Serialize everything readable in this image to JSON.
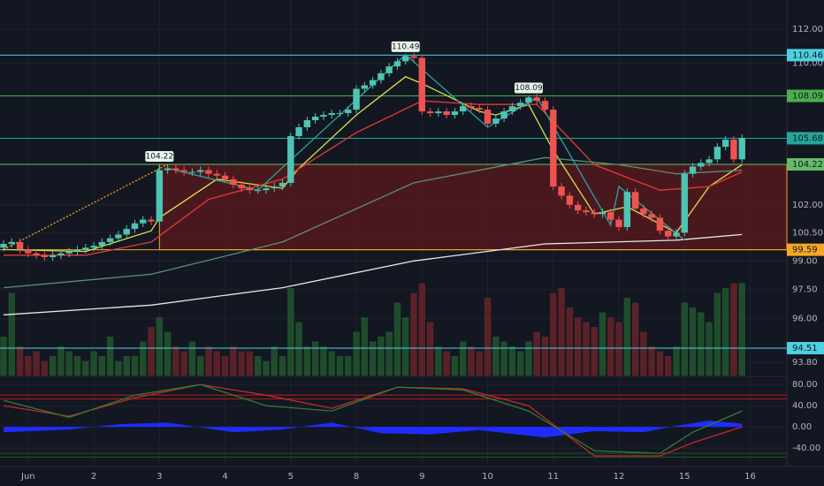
{
  "chart_data": [
    {
      "type": "candlestick",
      "log_scale": true,
      "grid": true,
      "xlim": [
        -0.43,
        95.47
      ],
      "ylim": [
        93.14,
        113.75
      ],
      "xticks": [
        {
          "value": 3,
          "label": "Jun"
        },
        {
          "value": 11,
          "label": "2"
        },
        {
          "value": 19,
          "label": "3"
        },
        {
          "value": 27,
          "label": "4"
        },
        {
          "value": 35,
          "label": "5"
        },
        {
          "value": 43,
          "label": "8"
        },
        {
          "value": 51,
          "label": "9"
        },
        {
          "value": 59,
          "label": "10"
        },
        {
          "value": 67,
          "label": "11"
        },
        {
          "value": 75,
          "label": "12"
        },
        {
          "value": 83,
          "label": "15"
        },
        {
          "value": 91,
          "label": "16"
        }
      ],
      "yticks": [
        {
          "value": 112,
          "label": "112.00"
        },
        {
          "value": 110,
          "label": "110.00"
        },
        {
          "value": 102,
          "label": "102.00"
        },
        {
          "value": 100.5,
          "label": "100.50"
        },
        {
          "value": 99,
          "label": "99.00"
        },
        {
          "value": 97.5,
          "label": "97.50"
        },
        {
          "value": 96,
          "label": "96.00"
        },
        {
          "value": 93.8,
          "label": "93.80"
        }
      ],
      "up_color": "#4fc3b4",
      "down_color": "#ef5350",
      "open": [
        99.7,
        99.9,
        100.0,
        99.6,
        99.4,
        99.3,
        99.2,
        99.3,
        99.4,
        99.5,
        99.6,
        99.7,
        99.8,
        100.0,
        100.2,
        100.4,
        100.7,
        101.0,
        101.2,
        101.1,
        103.9,
        104.0,
        103.9,
        103.8,
        103.8,
        103.9,
        103.7,
        103.6,
        103.4,
        103.1,
        102.9,
        102.8,
        102.8,
        102.9,
        103.0,
        103.2,
        105.8,
        106.3,
        106.7,
        106.9,
        107.0,
        107.1,
        107.1,
        107.3,
        108.5,
        108.7,
        109.0,
        109.4,
        109.8,
        110.1,
        110.4,
        110.3,
        107.2,
        107.1,
        107.2,
        107.0,
        107.2,
        107.5,
        107.4,
        107.3,
        106.5,
        106.8,
        107.2,
        107.5,
        107.7,
        108.0,
        107.8,
        107.3,
        103.0,
        102.5,
        102.0,
        101.7,
        101.6,
        101.5,
        101.6,
        101.2,
        100.8,
        102.7,
        101.8,
        101.5,
        101.3,
        100.6,
        100.3,
        100.5,
        103.7,
        104.1,
        104.3,
        104.5,
        105.2,
        105.6,
        104.5
      ],
      "high": [
        100.1,
        100.2,
        100.2,
        99.8,
        99.6,
        99.5,
        99.5,
        99.6,
        99.7,
        99.8,
        99.9,
        100.0,
        100.2,
        100.4,
        100.6,
        100.9,
        101.2,
        101.4,
        101.4,
        104.22,
        104.2,
        104.2,
        104.1,
        104.0,
        104.1,
        104.1,
        103.9,
        103.8,
        103.6,
        103.3,
        103.1,
        103.0,
        103.1,
        103.2,
        103.4,
        106.0,
        106.5,
        106.9,
        107.1,
        107.2,
        107.3,
        107.3,
        107.5,
        108.7,
        108.9,
        109.2,
        109.6,
        110.0,
        110.3,
        110.49,
        110.6,
        110.5,
        107.4,
        107.4,
        107.4,
        107.4,
        107.7,
        107.7,
        107.6,
        107.5,
        107.0,
        107.4,
        107.7,
        107.9,
        108.09,
        108.2,
        108.0,
        107.5,
        103.2,
        102.7,
        102.2,
        101.9,
        101.8,
        101.8,
        101.8,
        101.4,
        102.9,
        102.9,
        102.0,
        101.7,
        101.5,
        100.8,
        100.7,
        103.9,
        104.3,
        104.5,
        104.7,
        105.4,
        105.8,
        105.8,
        105.9
      ],
      "low": [
        99.5,
        99.7,
        99.4,
        99.2,
        99.1,
        99.0,
        99.0,
        99.1,
        99.2,
        99.3,
        99.4,
        99.5,
        99.6,
        99.8,
        100.0,
        100.2,
        100.5,
        100.8,
        100.9,
        100.9,
        103.7,
        103.7,
        103.6,
        103.6,
        103.6,
        103.5,
        103.4,
        103.2,
        102.9,
        102.7,
        102.6,
        102.6,
        102.6,
        102.7,
        102.8,
        103.0,
        105.6,
        106.1,
        106.5,
        106.7,
        106.8,
        106.9,
        106.9,
        107.1,
        108.3,
        108.5,
        108.8,
        109.2,
        109.6,
        109.9,
        110.1,
        107.0,
        106.9,
        106.9,
        106.8,
        106.8,
        107.0,
        107.2,
        107.1,
        106.3,
        106.3,
        106.6,
        107.0,
        107.3,
        107.5,
        107.6,
        107.1,
        102.8,
        102.3,
        101.8,
        101.5,
        101.4,
        101.3,
        101.3,
        101.0,
        100.6,
        100.6,
        101.6,
        101.3,
        101.1,
        100.4,
        100.1,
        100.1,
        100.3,
        103.5,
        103.9,
        104.1,
        104.3,
        105.0,
        104.3,
        104.3
      ],
      "close": [
        99.9,
        100.0,
        99.6,
        99.4,
        99.3,
        99.2,
        99.3,
        99.4,
        99.5,
        99.6,
        99.7,
        99.8,
        100.0,
        100.2,
        100.4,
        100.7,
        101.0,
        101.2,
        101.1,
        103.9,
        104.0,
        103.9,
        103.8,
        103.8,
        103.9,
        103.7,
        103.6,
        103.4,
        103.1,
        102.9,
        102.8,
        102.8,
        102.9,
        103.0,
        103.2,
        105.8,
        106.3,
        106.7,
        106.9,
        107.0,
        107.1,
        107.1,
        107.3,
        108.5,
        108.7,
        109.0,
        109.4,
        109.8,
        110.1,
        110.4,
        110.3,
        107.2,
        107.1,
        107.2,
        107.0,
        107.2,
        107.5,
        107.4,
        107.3,
        106.5,
        106.8,
        107.2,
        107.5,
        107.7,
        108.0,
        107.8,
        107.3,
        103.0,
        102.5,
        102.0,
        101.7,
        101.6,
        101.5,
        101.6,
        101.2,
        100.8,
        102.7,
        101.8,
        101.5,
        101.3,
        100.6,
        100.3,
        100.5,
        103.7,
        104.1,
        104.3,
        104.5,
        105.2,
        105.6,
        104.5,
        105.7
      ],
      "volume": [
        40,
        85,
        30,
        20,
        25,
        15,
        20,
        30,
        25,
        20,
        15,
        25,
        20,
        40,
        15,
        20,
        20,
        35,
        50,
        60,
        45,
        30,
        25,
        35,
        20,
        30,
        25,
        20,
        30,
        25,
        25,
        20,
        15,
        30,
        20,
        90,
        55,
        30,
        35,
        30,
        25,
        20,
        20,
        45,
        60,
        35,
        40,
        45,
        75,
        60,
        85,
        95,
        55,
        30,
        25,
        20,
        35,
        30,
        25,
        80,
        40,
        35,
        30,
        25,
        35,
        45,
        40,
        85,
        90,
        70,
        60,
        55,
        50,
        65,
        60,
        55,
        80,
        75,
        45,
        30,
        25,
        20,
        30,
        75,
        70,
        65,
        55,
        85,
        90,
        95,
        95
      ],
      "volume_lim": [
        0,
        100
      ],
      "volume_up_color": "#1f4d2c",
      "volume_down_color": "#5a2228",
      "zone": {
        "x": [
          19,
          95.47
        ],
        "range": [
          99.59,
          104.22
        ],
        "color": "#5c1a1e"
      },
      "levels": [
        {
          "value": 110.46,
          "color": "#4dd0e1"
        },
        {
          "value": 108.09,
          "color": "#4caf50"
        },
        {
          "value": 105.68,
          "color": "#26a69a"
        },
        {
          "value": 104.22,
          "color": "#66bb6a"
        },
        {
          "value": 99.59,
          "color": "#f5a623"
        },
        {
          "value": 94.51,
          "color": "#4dd0e1"
        }
      ],
      "lines": [
        {
          "color": "#f5a623",
          "dashed": true,
          "x": [
            0,
            20
          ],
          "values": [
            99.6,
            104.22
          ]
        },
        {
          "color": "#d8e24a",
          "x": [
            0,
            10,
            18,
            19,
            26,
            34,
            36,
            43,
            49,
            51,
            58,
            60,
            64,
            67,
            72,
            76,
            82,
            86,
            90
          ],
          "values": [
            99.6,
            99.5,
            100.6,
            101.3,
            103.4,
            102.9,
            104.0,
            107.0,
            109.2,
            108.8,
            107.2,
            107.0,
            107.6,
            105.0,
            101.5,
            101.9,
            100.5,
            103.0,
            104.2
          ]
        },
        {
          "color": "#e53935",
          "x": [
            0,
            10,
            18,
            25,
            34,
            43,
            51,
            58,
            65,
            72,
            80,
            86,
            90
          ],
          "values": [
            99.3,
            99.3,
            100.0,
            102.3,
            103.4,
            106.0,
            107.8,
            107.6,
            107.6,
            104.2,
            102.8,
            103.0,
            103.8
          ]
        },
        {
          "color": "#5f8f75",
          "x": [
            0,
            18,
            34,
            50,
            66,
            75,
            82,
            90
          ],
          "values": [
            97.6,
            98.3,
            100.0,
            103.2,
            104.6,
            104.2,
            103.7,
            103.9
          ]
        },
        {
          "color": "#e8e8e8",
          "x": [
            0,
            18,
            34,
            50,
            66,
            82,
            90
          ],
          "values": [
            96.2,
            96.7,
            97.6,
            99.0,
            99.9,
            100.1,
            100.4
          ]
        },
        {
          "color": "#26a69a",
          "x": [
            20,
            31,
            49,
            59,
            65,
            74,
            75,
            83
          ],
          "values": [
            104.0,
            102.8,
            110.49,
            106.3,
            108.0,
            100.9,
            103.0,
            100.1
          ]
        }
      ],
      "annotations": [
        {
          "x": 49,
          "value": 110.49
        },
        {
          "x": 64,
          "value": 108.09
        },
        {
          "x": 19,
          "value": 104.22
        }
      ]
    },
    {
      "type": "oscillator",
      "xlim": [
        -0.43,
        95.47
      ],
      "ylim": [
        -70,
        92
      ],
      "yticks": [
        {
          "value": 80,
          "label": "80.00"
        },
        {
          "value": 40,
          "label": "40.00"
        },
        {
          "value": 0,
          "label": "0.00"
        },
        {
          "value": -40,
          "label": "-40.00"
        }
      ],
      "levels": [
        {
          "value": 60,
          "color": "#b71c1c"
        },
        {
          "value": 53,
          "color": "#b71c1c"
        },
        {
          "value": -50,
          "color": "#1b5e20"
        },
        {
          "value": -57,
          "color": "#1b5e20"
        }
      ],
      "series": [
        {
          "color": "#1f2cff",
          "style": "area",
          "x": [
            0,
            8,
            14,
            20,
            28,
            34,
            40,
            46,
            52,
            58,
            66,
            72,
            78,
            82,
            86,
            90
          ],
          "values": [
            -10,
            -5,
            5,
            8,
            -10,
            -5,
            8,
            -12,
            -14,
            -6,
            -20,
            -8,
            -10,
            2,
            12,
            6
          ]
        },
        {
          "color": "#c62828",
          "x": [
            0,
            8,
            16,
            24,
            32,
            40,
            48,
            56,
            64,
            72,
            80,
            84,
            90
          ],
          "values": [
            40,
            20,
            55,
            80,
            60,
            35,
            75,
            72,
            40,
            -55,
            -55,
            -30,
            0
          ]
        },
        {
          "color": "#2e7d32",
          "x": [
            0,
            8,
            16,
            24,
            32,
            40,
            48,
            56,
            64,
            72,
            80,
            84,
            90
          ],
          "values": [
            50,
            18,
            60,
            80,
            40,
            30,
            75,
            70,
            30,
            -45,
            -50,
            -10,
            30
          ]
        }
      ]
    }
  ]
}
